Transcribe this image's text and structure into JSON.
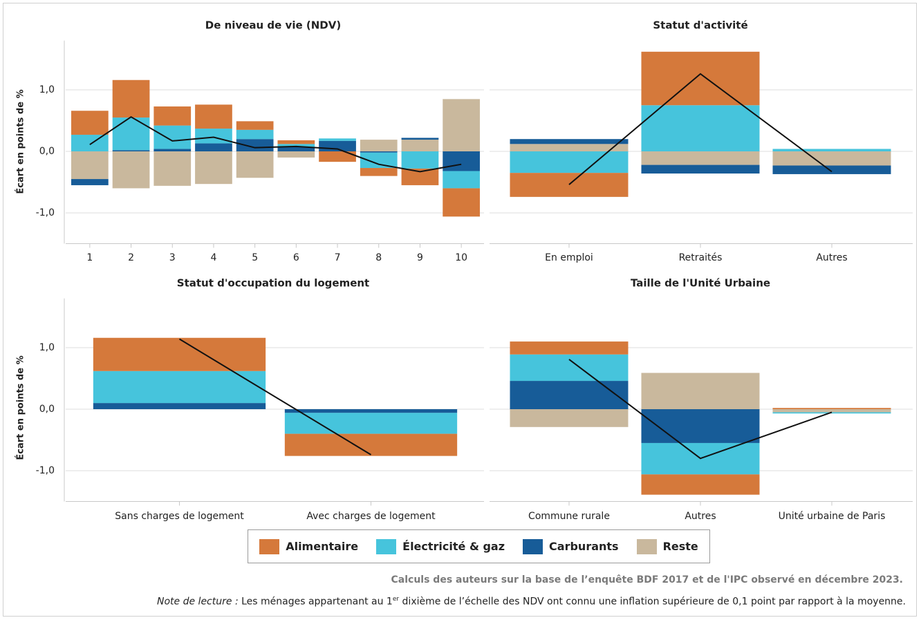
{
  "chart_data": [
    {
      "type": "bar",
      "stacked": true,
      "title": "De niveau de vie (NDV)",
      "ylabel": "Écart en points de %",
      "categories": [
        "1",
        "2",
        "3",
        "4",
        "5",
        "6",
        "7",
        "8",
        "9",
        "10"
      ],
      "series": [
        {
          "name": "Alimentaire",
          "color": "#d5793b",
          "values": [
            0.39,
            0.61,
            0.31,
            0.39,
            0.14,
            0.06,
            -0.17,
            -0.13,
            -0.27,
            -0.46
          ]
        },
        {
          "name": "Électricité & gaz",
          "color": "#46c4dc",
          "values": [
            0.27,
            0.53,
            0.38,
            0.24,
            0.15,
            0.05,
            0.04,
            -0.25,
            -0.28,
            -0.28
          ]
        },
        {
          "name": "Carburants",
          "color": "#175c98",
          "values": [
            -0.1,
            0.02,
            0.04,
            0.13,
            0.2,
            0.07,
            0.17,
            -0.02,
            0.03,
            -0.32
          ]
        },
        {
          "name": "Reste",
          "color": "#c9b89d",
          "values": [
            -0.45,
            -0.6,
            -0.56,
            -0.53,
            -0.43,
            -0.1,
            0,
            0.19,
            0.19,
            0.85
          ]
        }
      ],
      "line": {
        "color": "#111111",
        "values": [
          0.11,
          0.56,
          0.17,
          0.23,
          0.06,
          0.08,
          0.04,
          -0.21,
          -0.33,
          -0.21
        ]
      },
      "ylim": [
        -1.5,
        1.8
      ],
      "yticks": [
        {
          "value": -1,
          "label": "-1,0"
        },
        {
          "value": 0,
          "label": "0,0"
        },
        {
          "value": 1,
          "label": "1,0"
        }
      ],
      "ytick_labels": true,
      "grid": true
    },
    {
      "type": "bar",
      "stacked": true,
      "title": "Statut d'activité",
      "categories": [
        "En emploi",
        "Retraités",
        "Autres"
      ],
      "series": [
        {
          "name": "Alimentaire",
          "color": "#d5793b",
          "values": [
            -0.39,
            0.87,
            0
          ]
        },
        {
          "name": "Électricité & gaz",
          "color": "#46c4dc",
          "values": [
            -0.35,
            0.75,
            0.04
          ]
        },
        {
          "name": "Carburants",
          "color": "#175c98",
          "values": [
            0.08,
            -0.14,
            -0.14
          ]
        },
        {
          "name": "Reste",
          "color": "#c9b89d",
          "values": [
            0.12,
            -0.22,
            -0.23
          ]
        }
      ],
      "line": {
        "color": "#111111",
        "values": [
          -0.54,
          1.26,
          -0.33
        ]
      },
      "ylim": [
        -1.5,
        1.8
      ],
      "yticks": [
        {
          "value": -1,
          "label": "-1,0"
        },
        {
          "value": 0,
          "label": "0,0"
        },
        {
          "value": 1,
          "label": "1,0"
        }
      ],
      "ytick_labels": false,
      "grid": true
    },
    {
      "type": "bar",
      "stacked": true,
      "title": "Statut d'occupation du logement",
      "ylabel": "Écart en points de %",
      "categories": [
        "Sans charges de logement",
        "Avec charges de logement"
      ],
      "series": [
        {
          "name": "Alimentaire",
          "color": "#d5793b",
          "values": [
            0.54,
            -0.36
          ]
        },
        {
          "name": "Électricité & gaz",
          "color": "#46c4dc",
          "values": [
            0.52,
            -0.34
          ]
        },
        {
          "name": "Carburants",
          "color": "#175c98",
          "values": [
            0.1,
            -0.06
          ]
        },
        {
          "name": "Reste",
          "color": "#c9b89d",
          "values": [
            0,
            0
          ]
        }
      ],
      "line": {
        "color": "#111111",
        "values": [
          1.14,
          -0.74
        ]
      },
      "ylim": [
        -1.5,
        1.8
      ],
      "yticks": [
        {
          "value": -1,
          "label": "-1,0"
        },
        {
          "value": 0,
          "label": "0,0"
        },
        {
          "value": 1,
          "label": "1,0"
        }
      ],
      "ytick_labels": true,
      "grid": true
    },
    {
      "type": "bar",
      "stacked": true,
      "title": "Taille de l'Unité Urbaine",
      "categories": [
        "Commune rurale",
        "Autres",
        "Unité urbaine de Paris"
      ],
      "series": [
        {
          "name": "Alimentaire",
          "color": "#d5793b",
          "values": [
            0.21,
            -0.33,
            0.02
          ]
        },
        {
          "name": "Électricité & gaz",
          "color": "#46c4dc",
          "values": [
            0.43,
            -0.51,
            -0.02
          ]
        },
        {
          "name": "Carburants",
          "color": "#175c98",
          "values": [
            0.46,
            -0.55,
            0
          ]
        },
        {
          "name": "Reste",
          "color": "#c9b89d",
          "values": [
            -0.29,
            0.59,
            -0.05
          ]
        }
      ],
      "line": {
        "color": "#111111",
        "values": [
          0.81,
          -0.8,
          -0.05
        ]
      },
      "ylim": [
        -1.5,
        1.8
      ],
      "yticks": [
        {
          "value": -1,
          "label": "-1,0"
        },
        {
          "value": 0,
          "label": "0,0"
        },
        {
          "value": 1,
          "label": "1,0"
        }
      ],
      "ytick_labels": false,
      "grid": true
    }
  ],
  "source": "Calculs des auteurs sur la base de l’enquête BDF 2017 et de l'IPC observé en décembre 2023.",
  "note": {
    "label": "Note de lecture :",
    "before": "Les ménages appartenant au 1",
    "superscript": "er",
    "after": " dixième de l’échelle des NDV ont connu une inflation supérieure de 0,1 point par rapport à la moyenne."
  }
}
